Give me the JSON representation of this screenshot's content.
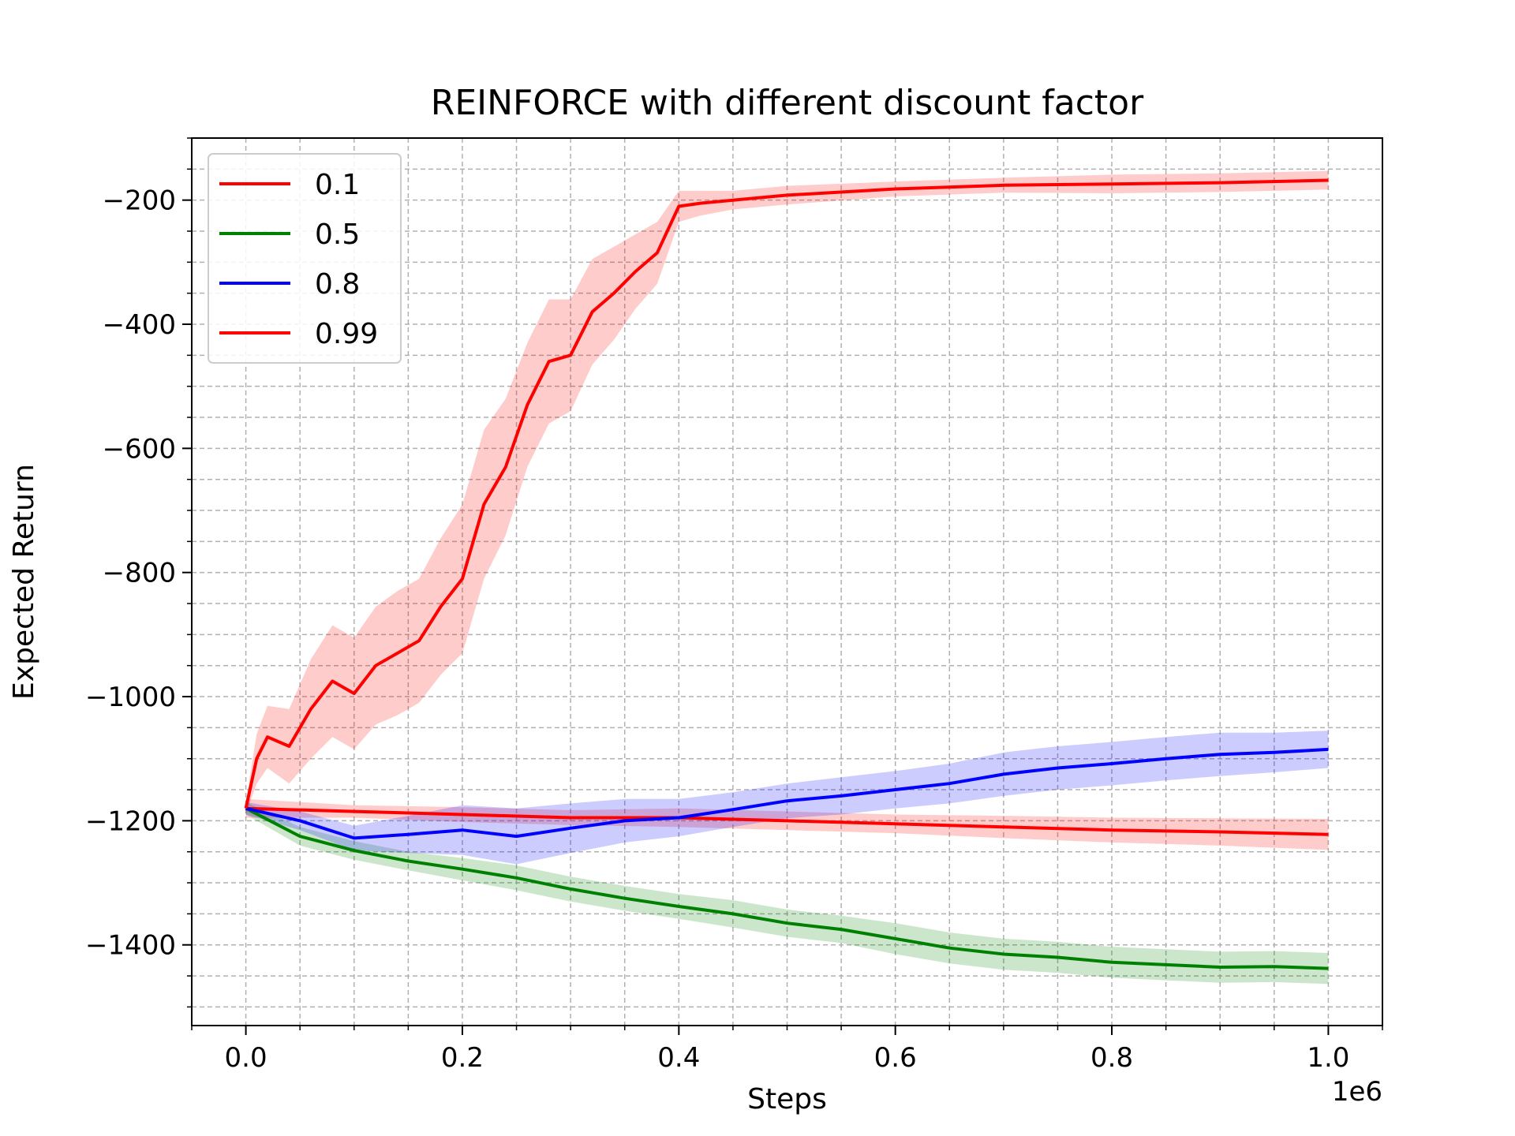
{
  "chart_data": {
    "type": "line",
    "title": "REINFORCE with different discount factor",
    "xlabel": "Steps",
    "ylabel": "Expected Return",
    "x_offset_label": "1e6",
    "xlim": [
      -0.05,
      1.05
    ],
    "ylim": [
      -1530,
      -100
    ],
    "x_ticks": [
      0.0,
      0.2,
      0.4,
      0.6,
      0.8,
      1.0
    ],
    "x_tick_labels": [
      "0.0",
      "0.2",
      "0.4",
      "0.6",
      "0.8",
      "1.0"
    ],
    "y_ticks": [
      -1400,
      -1200,
      -1000,
      -800,
      -600,
      -400,
      -200
    ],
    "y_tick_labels": [
      "−1400",
      "−1200",
      "−1000",
      "−800",
      "−600",
      "−400",
      "−200"
    ],
    "grid": true,
    "minor_grid": true,
    "legend_position": "top-left",
    "series": [
      {
        "name": "0.1",
        "color": "#ff0000",
        "x": [
          0.0,
          0.1,
          0.2,
          0.3,
          0.4,
          0.5,
          0.6,
          0.7,
          0.8,
          0.9,
          1.0
        ],
        "y": [
          -1180,
          -1185,
          -1190,
          -1195,
          -1195,
          -1200,
          -1205,
          -1210,
          -1215,
          -1218,
          -1222
        ],
        "band": [
          15,
          10,
          12,
          12,
          15,
          15,
          15,
          18,
          20,
          22,
          25
        ]
      },
      {
        "name": "0.5",
        "color": "#008000",
        "x": [
          0.0,
          0.05,
          0.1,
          0.15,
          0.2,
          0.25,
          0.3,
          0.35,
          0.4,
          0.45,
          0.5,
          0.55,
          0.6,
          0.65,
          0.7,
          0.75,
          0.8,
          0.85,
          0.9,
          0.95,
          1.0
        ],
        "y": [
          -1180,
          -1225,
          -1248,
          -1265,
          -1278,
          -1292,
          -1310,
          -1325,
          -1338,
          -1350,
          -1365,
          -1375,
          -1390,
          -1405,
          -1415,
          -1420,
          -1428,
          -1432,
          -1436,
          -1435,
          -1438
        ],
        "band": [
          10,
          15,
          15,
          15,
          18,
          20,
          20,
          20,
          20,
          22,
          22,
          22,
          25,
          25,
          25,
          25,
          25,
          25,
          25,
          25,
          25
        ]
      },
      {
        "name": "0.8",
        "color": "#0000ff",
        "x": [
          0.0,
          0.05,
          0.1,
          0.15,
          0.2,
          0.25,
          0.3,
          0.35,
          0.4,
          0.45,
          0.5,
          0.55,
          0.6,
          0.65,
          0.7,
          0.75,
          0.8,
          0.85,
          0.9,
          0.95,
          1.0
        ],
        "y": [
          -1180,
          -1200,
          -1228,
          -1222,
          -1215,
          -1225,
          -1212,
          -1200,
          -1195,
          -1182,
          -1168,
          -1160,
          -1150,
          -1140,
          -1125,
          -1115,
          -1108,
          -1100,
          -1093,
          -1090,
          -1085
        ],
        "band": [
          10,
          15,
          20,
          30,
          40,
          45,
          40,
          35,
          30,
          28,
          28,
          30,
          30,
          32,
          35,
          35,
          35,
          35,
          35,
          32,
          30
        ]
      },
      {
        "name": "0.99",
        "color": "#ff0000",
        "x": [
          0.0,
          0.01,
          0.02,
          0.04,
          0.06,
          0.08,
          0.1,
          0.12,
          0.14,
          0.16,
          0.18,
          0.2,
          0.22,
          0.24,
          0.26,
          0.28,
          0.3,
          0.32,
          0.34,
          0.36,
          0.38,
          0.4,
          0.42,
          0.45,
          0.5,
          0.6,
          0.7,
          0.8,
          0.9,
          1.0
        ],
        "y": [
          -1180,
          -1100,
          -1065,
          -1080,
          -1020,
          -975,
          -995,
          -950,
          -930,
          -910,
          -855,
          -810,
          -690,
          -630,
          -530,
          -460,
          -450,
          -380,
          -350,
          -315,
          -285,
          -210,
          -205,
          -200,
          -192,
          -182,
          -176,
          -174,
          -172,
          -168
        ],
        "band": [
          10,
          40,
          50,
          60,
          80,
          90,
          90,
          95,
          100,
          100,
          110,
          120,
          120,
          110,
          100,
          100,
          90,
          85,
          75,
          60,
          50,
          25,
          20,
          15,
          15,
          12,
          12,
          15,
          15,
          15
        ]
      }
    ]
  }
}
